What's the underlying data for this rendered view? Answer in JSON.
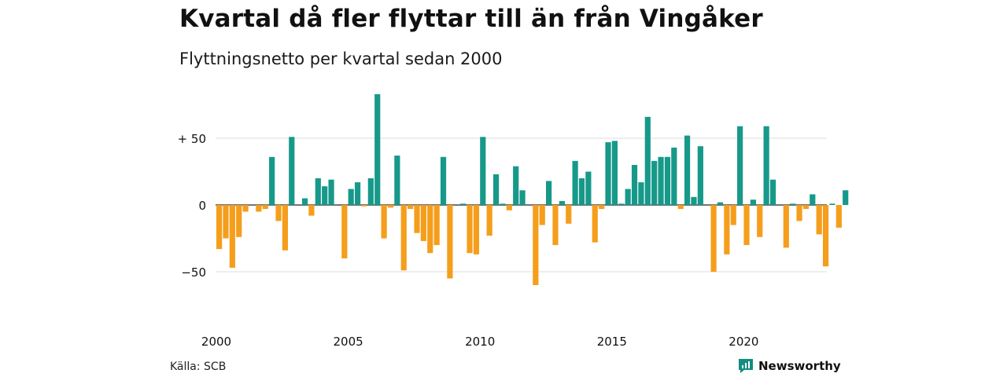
{
  "header": {
    "title": "Kvartal då fler flyttar till än från Vingåker",
    "subtitle": "Flyttningsnetto per kvartal sedan 2000"
  },
  "footer": {
    "source": "Källa: SCB",
    "brand": "Newsworthy"
  },
  "colors": {
    "positive": "#17998a",
    "negative": "#f59e1c",
    "grid": "#dddddd",
    "brand": "#138d80",
    "text": "#111111"
  },
  "chart_data": {
    "type": "bar",
    "start_year": 2000,
    "periods_per_year": 4,
    "ylim": [
      -80,
      85
    ],
    "y_ticks": [
      {
        "value": 50,
        "label": "+ 50"
      },
      {
        "value": 0,
        "label": "0"
      },
      {
        "value": -50,
        "label": "−50"
      }
    ],
    "x_ticks": [
      "2000",
      "2005",
      "2010",
      "2015",
      "2020"
    ],
    "grid": true,
    "values": [
      -33,
      -25,
      -47,
      -24,
      -5,
      0,
      -5,
      -3,
      36,
      -12,
      -34,
      51,
      0,
      5,
      -8,
      20,
      14,
      19,
      0,
      -40,
      12,
      17,
      -1,
      20,
      83,
      -25,
      -2,
      37,
      -49,
      -3,
      -21,
      -27,
      -36,
      -30,
      36,
      -55,
      0,
      1,
      -36,
      -37,
      51,
      -23,
      23,
      1,
      -4,
      29,
      11,
      0,
      -60,
      -15,
      18,
      -30,
      3,
      -14,
      33,
      20,
      25,
      -28,
      -3,
      47,
      48,
      1,
      12,
      30,
      17,
      66,
      33,
      36,
      36,
      43,
      -3,
      52,
      6,
      44,
      0,
      -50,
      2,
      -37,
      -15,
      59,
      -30,
      4,
      -24,
      59,
      19,
      0,
      -32,
      1,
      -12,
      -3,
      8,
      -22,
      -46,
      1,
      -17,
      11
    ]
  }
}
